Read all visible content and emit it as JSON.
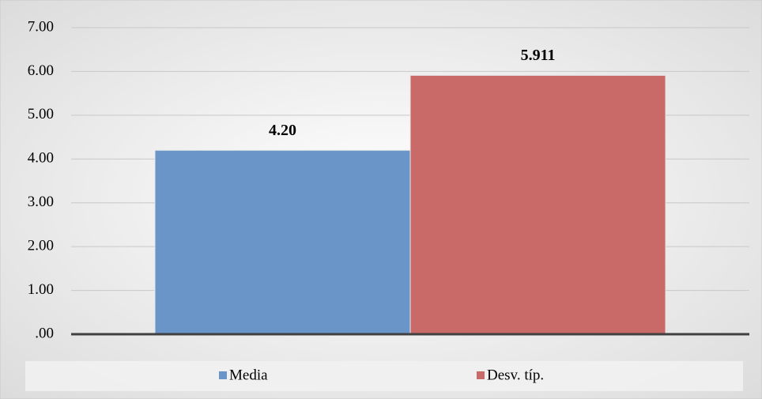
{
  "chart_data": {
    "type": "bar",
    "categories": [
      null
    ],
    "series": [
      {
        "name": "Media",
        "color": "#6a95c8",
        "values": [
          4.2
        ],
        "value_labels": [
          "4.20"
        ]
      },
      {
        "name": "Desv. típ.",
        "color": "#c96a68",
        "values": [
          5.911
        ]
      }
    ],
    "ylim": [
      0,
      7
    ],
    "yticks": [
      {
        "value": 0,
        "label": ".00"
      },
      {
        "value": 1,
        "label": "1.00"
      },
      {
        "value": 2,
        "label": "2.00"
      },
      {
        "value": 3,
        "label": "3.00"
      },
      {
        "value": 4,
        "label": "4.00"
      },
      {
        "value": 5,
        "label": "5.00"
      },
      {
        "value": 6,
        "label": "6.00"
      },
      {
        "value": 7,
        "label": "7.00"
      }
    ],
    "grid": true,
    "legend": "bottom"
  }
}
